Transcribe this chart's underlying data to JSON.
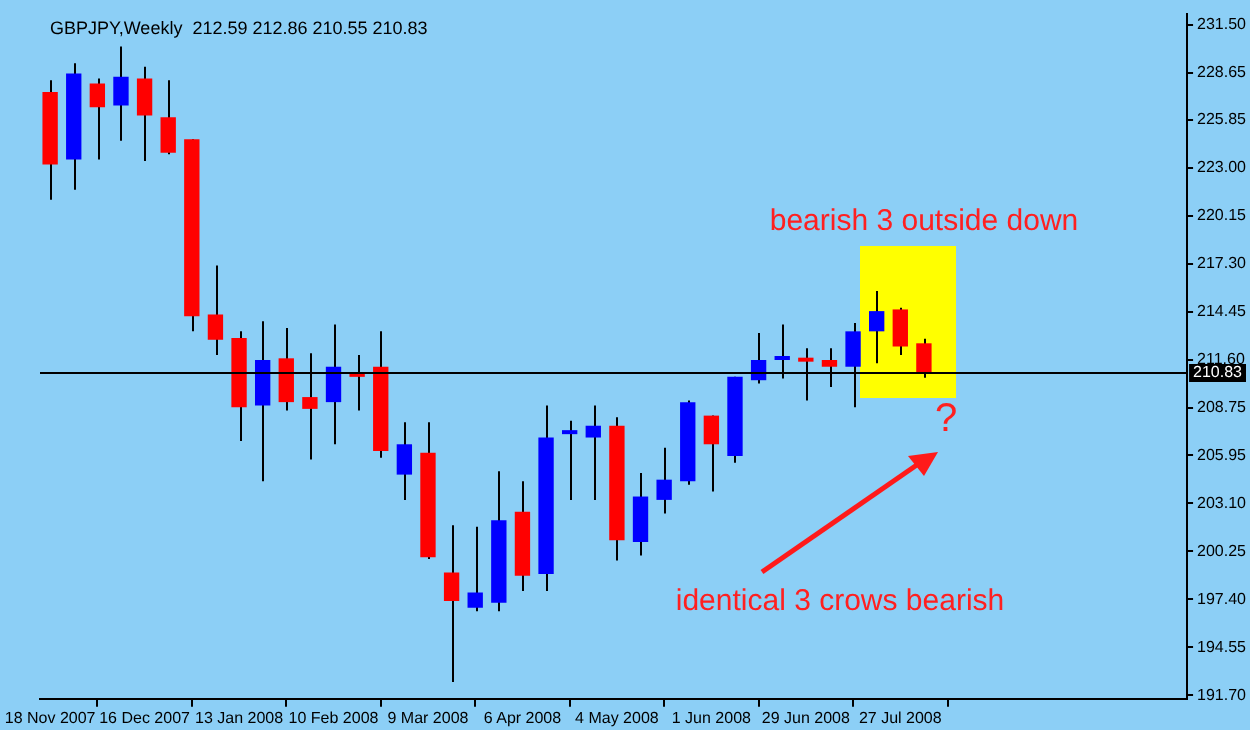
{
  "chart_data": {
    "type": "candlestick",
    "title": "GBPJPY,Weekly  212.59 212.86 210.55 210.83",
    "x": [
      "2007-11-18",
      "2007-11-25",
      "2007-12-02",
      "2007-12-09",
      "2007-12-16",
      "2007-12-23",
      "2007-12-30",
      "2008-01-06",
      "2008-01-13",
      "2008-01-20",
      "2008-01-27",
      "2008-02-03",
      "2008-02-10",
      "2008-02-17",
      "2008-02-24",
      "2008-03-02",
      "2008-03-09",
      "2008-03-16",
      "2008-03-23",
      "2008-03-30",
      "2008-04-06",
      "2008-04-13",
      "2008-04-20",
      "2008-04-27",
      "2008-05-04",
      "2008-05-11",
      "2008-05-18",
      "2008-05-25",
      "2008-06-01",
      "2008-06-08",
      "2008-06-15",
      "2008-06-22",
      "2008-06-29",
      "2008-07-06",
      "2008-07-13",
      "2008-07-20",
      "2008-07-27",
      "2008-08-03"
    ],
    "ohlc": [
      [
        227.5,
        228.2,
        221.1,
        223.2
      ],
      [
        223.5,
        229.2,
        221.7,
        228.6
      ],
      [
        228.0,
        228.3,
        223.5,
        226.6
      ],
      [
        226.7,
        230.2,
        224.6,
        228.4
      ],
      [
        228.3,
        229.0,
        223.4,
        226.1
      ],
      [
        226.0,
        228.2,
        223.8,
        223.9
      ],
      [
        224.7,
        224.7,
        213.3,
        214.2
      ],
      [
        214.3,
        217.2,
        211.9,
        212.8
      ],
      [
        212.9,
        213.3,
        206.8,
        208.8
      ],
      [
        208.9,
        213.9,
        204.4,
        211.6
      ],
      [
        211.7,
        213.5,
        208.6,
        209.1
      ],
      [
        209.4,
        212.0,
        205.7,
        208.7
      ],
      [
        209.1,
        213.7,
        206.6,
        211.2
      ],
      [
        210.8,
        211.9,
        208.6,
        210.6
      ],
      [
        211.2,
        213.3,
        205.8,
        206.2
      ],
      [
        204.8,
        207.9,
        203.3,
        206.6
      ],
      [
        206.1,
        207.9,
        199.8,
        199.9
      ],
      [
        199.0,
        201.8,
        192.5,
        197.3
      ],
      [
        196.9,
        201.7,
        196.7,
        197.8
      ],
      [
        197.2,
        205.0,
        196.7,
        202.1
      ],
      [
        202.6,
        204.4,
        197.9,
        198.8
      ],
      [
        198.9,
        208.9,
        197.9,
        207.0
      ],
      [
        207.2,
        208.0,
        203.3,
        207.4
      ],
      [
        207.0,
        208.9,
        203.3,
        207.7
      ],
      [
        207.7,
        208.2,
        199.7,
        200.9
      ],
      [
        200.8,
        204.9,
        200.0,
        203.5
      ],
      [
        203.3,
        206.4,
        202.5,
        204.5
      ],
      [
        204.4,
        209.2,
        204.2,
        209.1
      ],
      [
        208.3,
        208.3,
        203.8,
        206.6
      ],
      [
        205.9,
        210.6,
        205.5,
        210.6
      ],
      [
        210.4,
        213.2,
        210.2,
        211.6
      ],
      [
        211.6,
        213.7,
        210.5,
        211.7
      ],
      [
        211.7,
        212.3,
        209.2,
        211.5
      ],
      [
        211.6,
        212.3,
        210.0,
        211.2
      ],
      [
        211.2,
        213.8,
        208.8,
        213.3
      ],
      [
        213.3,
        215.7,
        211.4,
        214.5
      ],
      [
        214.6,
        214.7,
        211.9,
        212.4
      ],
      [
        212.59,
        212.86,
        210.55,
        210.83
      ]
    ],
    "colors": [
      "#ff0000",
      "#0000ff",
      "#ff0000",
      "#0000ff",
      "#ff0000",
      "#ff0000",
      "#ff0000",
      "#ff0000",
      "#ff0000",
      "#0000ff",
      "#ff0000",
      "#ff0000",
      "#0000ff",
      "#ff0000",
      "#ff0000",
      "#0000ff",
      "#ff0000",
      "#ff0000",
      "#0000ff",
      "#0000ff",
      "#ff0000",
      "#0000ff",
      "#0000ff",
      "#0000ff",
      "#ff0000",
      "#0000ff",
      "#0000ff",
      "#0000ff",
      "#ff0000",
      "#0000ff",
      "#0000ff",
      "#0000ff",
      "#ff0000",
      "#ff0000",
      "#0000ff",
      "#0000ff",
      "#ff0000",
      "#ff0000"
    ],
    "xlim": [
      "2007-11-15",
      "2008-10-20"
    ],
    "xticks": [
      {
        "value": "2007-11-18",
        "label": "18 Nov 2007"
      },
      {
        "value": "2007-12-16",
        "label": "16 Dec 2007"
      },
      {
        "value": "2008-01-13",
        "label": "13 Jan 2008"
      },
      {
        "value": "2008-02-10",
        "label": "10 Feb 2008"
      },
      {
        "value": "2008-03-09",
        "label": "9 Mar 2008"
      },
      {
        "value": "2008-04-06",
        "label": "6 Apr 2008"
      },
      {
        "value": "2008-05-04",
        "label": "4 May 2008"
      },
      {
        "value": "2008-06-01",
        "label": "1 Jun 2008"
      },
      {
        "value": "2008-06-29",
        "label": "29 Jun 2008"
      },
      {
        "value": "2008-07-27",
        "label": "27 Jul 2008"
      }
    ],
    "ylim": [
      191.5,
      232.15
    ],
    "yticks": [
      {
        "value": 231.5,
        "label": "231.50"
      },
      {
        "value": 228.65,
        "label": "228.65"
      },
      {
        "value": 225.85,
        "label": "225.85"
      },
      {
        "value": 223.0,
        "label": "223.00"
      },
      {
        "value": 220.15,
        "label": "220.15"
      },
      {
        "value": 217.3,
        "label": "217.30"
      },
      {
        "value": 214.45,
        "label": "214.45"
      },
      {
        "value": 211.6,
        "label": "211.60"
      },
      {
        "value": 208.75,
        "label": "208.75"
      },
      {
        "value": 205.95,
        "label": "205.95"
      },
      {
        "value": 203.1,
        "label": "203.10"
      },
      {
        "value": 200.25,
        "label": "200.25"
      },
      {
        "value": 197.4,
        "label": "197.40"
      },
      {
        "value": 194.55,
        "label": "194.55"
      },
      {
        "value": 191.7,
        "label": "191.70"
      }
    ],
    "ref_lines": [
      {
        "axis": "y",
        "value": 210.83,
        "label": "210.83",
        "color": "#000000"
      }
    ],
    "annotations": [
      "bearish 3 outside down",
      "?",
      "identical 3 crows bearish"
    ],
    "grid": false,
    "legend": false
  }
}
